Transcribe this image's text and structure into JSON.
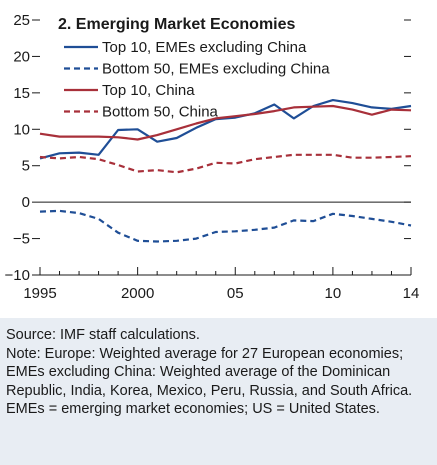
{
  "chart_data": {
    "type": "line",
    "title": "2. Emerging Market Economies",
    "x_tick_labels": [
      "1995",
      "2000",
      "05",
      "10",
      "14"
    ],
    "x_tick_years": [
      1995,
      2000,
      2005,
      2010,
      2014
    ],
    "xlim": [
      1995,
      2014
    ],
    "ylim": [
      -10,
      25
    ],
    "y_ticks": [
      -10,
      -5,
      0,
      5,
      10,
      15,
      20,
      25
    ],
    "grid": false,
    "legend_position": "top-left",
    "x": [
      1995,
      1996,
      1997,
      1998,
      1999,
      2000,
      2001,
      2002,
      2003,
      2004,
      2005,
      2006,
      2007,
      2008,
      2009,
      2010,
      2011,
      2012,
      2013,
      2014
    ],
    "series": [
      {
        "name": "Top 10, EMEs excluding China",
        "color": "#1f4e96",
        "dash": "solid",
        "values": [
          6.0,
          6.7,
          6.8,
          6.5,
          9.9,
          10.0,
          8.3,
          8.8,
          10.2,
          11.4,
          11.6,
          12.2,
          13.4,
          11.5,
          13.2,
          14.0,
          13.6,
          13.0,
          12.8,
          13.2
        ]
      },
      {
        "name": "Bottom 50, EMEs excluding China",
        "color": "#1f4e96",
        "dash": "dashed",
        "values": [
          -1.3,
          -1.2,
          -1.5,
          -2.3,
          -4.2,
          -5.3,
          -5.4,
          -5.3,
          -5.0,
          -4.1,
          -4.0,
          -3.8,
          -3.5,
          -2.5,
          -2.6,
          -1.6,
          -1.9,
          -2.3,
          -2.7,
          -3.2
        ]
      },
      {
        "name": "Top 10, China",
        "color": "#a8303a",
        "dash": "solid",
        "values": [
          9.4,
          9.0,
          9.0,
          9.0,
          8.9,
          8.6,
          9.2,
          10.0,
          10.8,
          11.5,
          11.8,
          12.1,
          12.5,
          13.0,
          13.1,
          13.2,
          12.7,
          12.0,
          12.7,
          12.6
        ]
      },
      {
        "name": "Bottom 50, China",
        "color": "#a8303a",
        "dash": "dashed",
        "values": [
          6.2,
          6.0,
          6.2,
          5.9,
          5.1,
          4.2,
          4.4,
          4.1,
          4.6,
          5.4,
          5.3,
          5.9,
          6.2,
          6.5,
          6.5,
          6.5,
          6.1,
          6.1,
          6.2,
          6.3
        ]
      }
    ]
  },
  "notes": {
    "source": "Source: IMF staff calculations.",
    "note": "Note: Europe: Weighted average for 27 European economies; EMEs excluding China: Weighted average of the Dominican Republic, India, Korea, Mexico, Peru, Russia, and South Africa. EMEs = emerging market economies; US = United States."
  }
}
